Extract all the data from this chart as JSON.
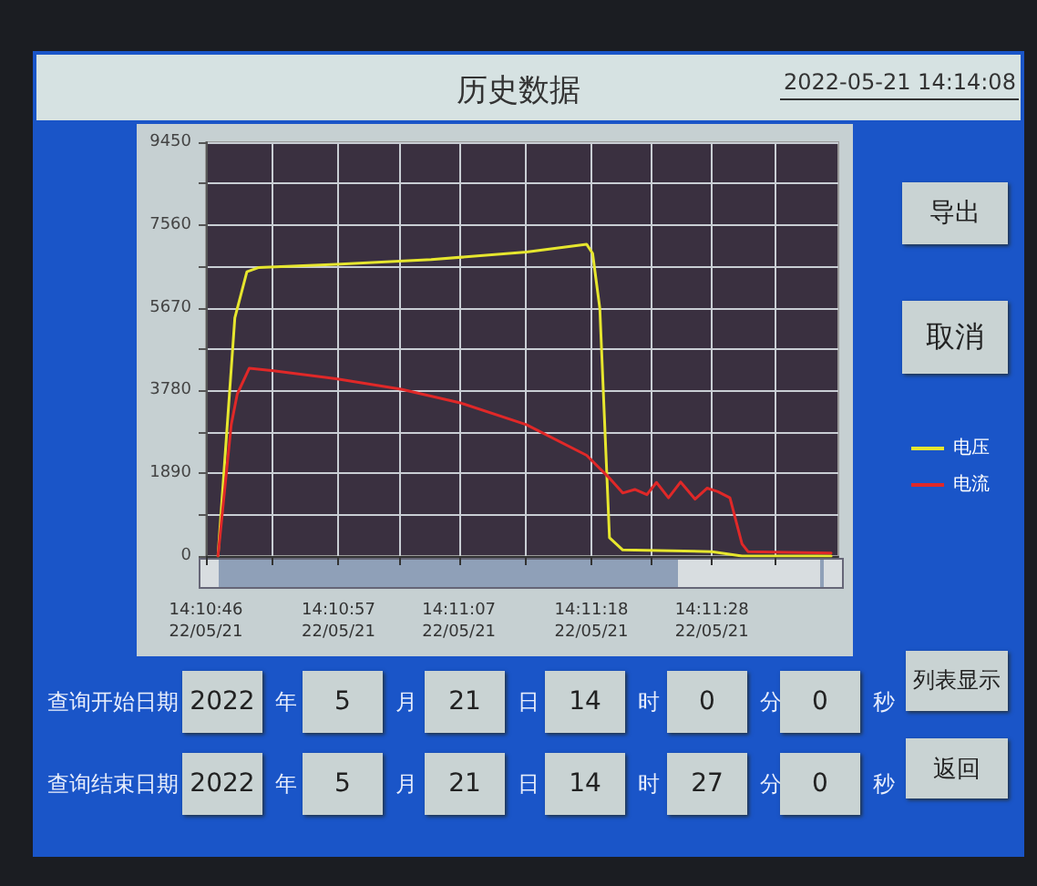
{
  "chart_data": {
    "type": "line",
    "title": "历史数据",
    "xlim": [
      "2022-05-21T14:10:46",
      "2022-05-21T14:11:38.5"
    ],
    "xticks": [
      {
        "value": "2022-05-21T14:10:46",
        "label": "14:10:46\n22/05/21"
      },
      {
        "value": "2022-05-21T14:10:51.5",
        "label": null
      },
      {
        "value": "2022-05-21T14:10:57",
        "label": "14:10:57\n22/05/21"
      },
      {
        "value": "2022-05-21T14:11:02",
        "label": null
      },
      {
        "value": "2022-05-21T14:11:07",
        "label": "14:11:07\n22/05/21"
      },
      {
        "value": "2022-05-21T14:11:12.5",
        "label": null
      },
      {
        "value": "2022-05-21T14:11:18",
        "label": "14:11:18\n22/05/21"
      },
      {
        "value": "2022-05-21T14:11:23",
        "label": null
      },
      {
        "value": "2022-05-21T14:11:28",
        "label": "14:11:28\n22/05/21"
      },
      {
        "value": "2022-05-21T14:11:33.2",
        "label": null
      }
    ],
    "ylim": [
      0,
      9450
    ],
    "yticks": [
      0,
      {
        "value": 945,
        "label": null
      },
      1890,
      {
        "value": 2835,
        "label": null
      },
      3780,
      {
        "value": 4725,
        "label": null
      },
      5670,
      {
        "value": 6615,
        "label": null
      },
      7560,
      {
        "value": 8505,
        "label": null
      },
      9450
    ],
    "series": [
      {
        "name": "电压",
        "color": "#e6e62e",
        "x": [
          "2022-05-21T14:10:47",
          "2022-05-21T14:10:48.4",
          "2022-05-21T14:10:49.4",
          "2022-05-21T14:10:50.4",
          "2022-05-21T14:10:56.8",
          "2022-05-21T14:11:04.7",
          "2022-05-21T14:11:12.6",
          "2022-05-21T14:11:17.6",
          "2022-05-21T14:11:18.1",
          "2022-05-21T14:11:18.7",
          "2022-05-21T14:11:19.5",
          "2022-05-21T14:11:20.6",
          "2022-05-21T14:11:28",
          "2022-05-21T14:11:30.5",
          "2022-05-21T14:11:37.9"
        ],
        "values": [
          0,
          5440,
          6490,
          6590,
          6660,
          6770,
          6940,
          7120,
          6910,
          5650,
          420,
          140,
          100,
          0,
          0
        ]
      },
      {
        "name": "电流",
        "color": "#e02828",
        "x": [
          "2022-05-21T14:10:47",
          "2022-05-21T14:10:48.1",
          "2022-05-21T14:10:48.6",
          "2022-05-21T14:10:49.6",
          "2022-05-21T14:10:51.6",
          "2022-05-21T14:10:56.8",
          "2022-05-21T14:11:02.2",
          "2022-05-21T14:11:07.2",
          "2022-05-21T14:11:12.6",
          "2022-05-21T14:11:17.6",
          "2022-05-21T14:11:19.6",
          "2022-05-21T14:11:20.6",
          "2022-05-21T14:11:21.6",
          "2022-05-21T14:11:22.6",
          "2022-05-21T14:11:23.4",
          "2022-05-21T14:11:24.4",
          "2022-05-21T14:11:25.4",
          "2022-05-21T14:11:26.6",
          "2022-05-21T14:11:27.6",
          "2022-05-21T14:11:28.5",
          "2022-05-21T14:11:29.5",
          "2022-05-21T14:11:30.5",
          "2022-05-21T14:11:31",
          "2022-05-21T14:11:37.9"
        ],
        "values": [
          0,
          3000,
          3700,
          4290,
          4230,
          4050,
          3810,
          3490,
          3000,
          2300,
          1750,
          1440,
          1520,
          1400,
          1680,
          1330,
          1690,
          1300,
          1550,
          1470,
          1330,
          280,
          100,
          70
        ]
      }
    ],
    "legend": "right",
    "grid": true,
    "marker": "none",
    "line_style": "solid",
    "annotations": [
      "2022-05-21 14:14:08",
      "导出",
      "取消",
      "列表显示",
      "返回",
      "查询开始日期",
      "2022",
      "年",
      "5",
      "月",
      "21",
      "日",
      "14",
      "时",
      "0",
      "分",
      "0",
      "秒",
      "查询结束日期",
      "2022",
      "年",
      "5",
      "月",
      "21",
      "日",
      "14",
      "时",
      "27",
      "分",
      "0",
      "秒"
    ]
  }
}
